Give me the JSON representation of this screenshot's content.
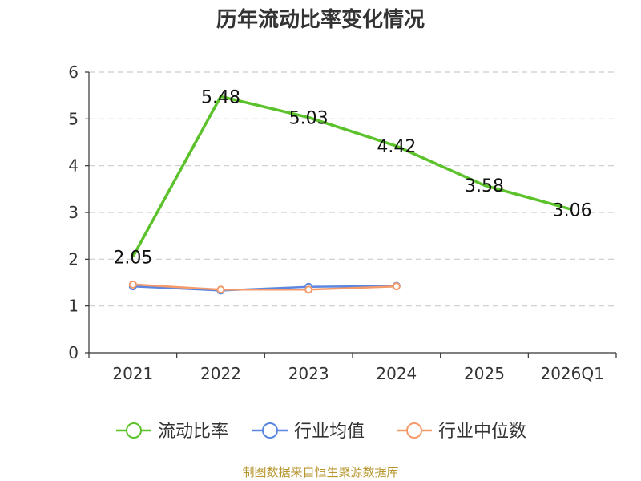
{
  "chart_data": {
    "type": "line",
    "title": "历年流动比率变化情况",
    "categories": [
      "2021",
      "2022",
      "2023",
      "2024",
      "2025",
      "2026Q1"
    ],
    "ylim": [
      0,
      6
    ],
    "yticks": [
      0,
      1,
      2,
      3,
      4,
      5,
      6
    ],
    "grid": true,
    "legend_position": "bottom",
    "series": [
      {
        "name": "流动比率",
        "color": "#5cc22b",
        "values": [
          2.05,
          5.48,
          5.03,
          4.42,
          3.58,
          3.06
        ],
        "labels": true,
        "markers": false
      },
      {
        "name": "行业均值",
        "color": "#5b87e0",
        "values": [
          1.42,
          1.33,
          1.41,
          1.43,
          null,
          null
        ],
        "labels": false,
        "markers": true
      },
      {
        "name": "行业中位数",
        "color": "#f49a6b",
        "values": [
          1.46,
          1.35,
          1.35,
          1.42,
          null,
          null
        ],
        "labels": false,
        "markers": true
      }
    ]
  },
  "footer": {
    "source": "制图数据来自恒生聚源数据库"
  }
}
